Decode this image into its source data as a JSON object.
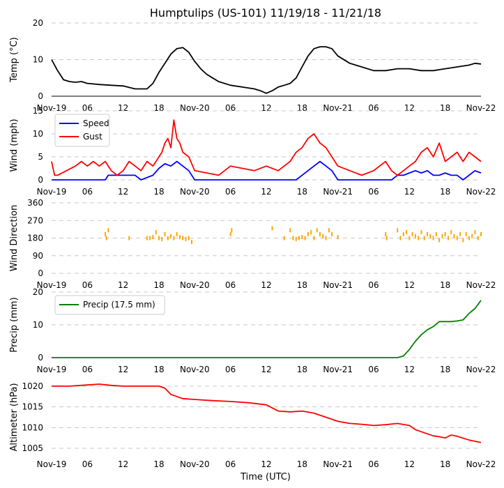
{
  "title": "Humptulips (US-101) 11/19/18 - 11/21/18",
  "xlabel": "Time (UTC)",
  "x_tick_labels": [
    "Nov-19",
    "06",
    "12",
    "18",
    "Nov-20",
    "06",
    "12",
    "18",
    "Nov-21",
    "06",
    "12",
    "18",
    "Nov-22"
  ],
  "x_range_hours": [
    0,
    72
  ],
  "chart_data": [
    {
      "type": "line",
      "id": "temp",
      "ylabel": "Temp (°C)",
      "ylim": [
        0,
        20
      ],
      "yticks": [
        0,
        10,
        20
      ],
      "grid": true,
      "legend": null,
      "series": [
        {
          "name": "Temp",
          "color": "#000000",
          "x": [
            0,
            1,
            2,
            3,
            4,
            5,
            6,
            8,
            10,
            12,
            14,
            16,
            17,
            18,
            19,
            20,
            21,
            22,
            23,
            24,
            25,
            26,
            27,
            28,
            30,
            32,
            34,
            35,
            36,
            37,
            38,
            39,
            40,
            41,
            42,
            43,
            44,
            45,
            46,
            47,
            48,
            50,
            52,
            54,
            56,
            58,
            60,
            62,
            64,
            66,
            68,
            70,
            71,
            72
          ],
          "y": [
            10,
            7,
            4.5,
            4,
            3.8,
            4,
            3.5,
            3.2,
            3,
            2.8,
            2,
            2,
            3.5,
            6.5,
            9,
            11.5,
            13,
            13.3,
            12,
            9.5,
            7.5,
            6,
            5,
            4,
            3,
            2.5,
            2,
            1.5,
            0.8,
            1.5,
            2.5,
            3,
            3.5,
            5,
            8,
            11,
            13,
            13.5,
            13.5,
            13,
            11,
            9,
            8,
            7,
            7,
            7.5,
            7.5,
            7,
            7,
            7.5,
            8,
            8.5,
            9,
            8.8
          ]
        }
      ]
    },
    {
      "type": "line",
      "id": "wind",
      "ylabel": "Wind (mph)",
      "ylim": [
        0,
        15
      ],
      "yticks": [
        0,
        5,
        10,
        15
      ],
      "grid": true,
      "legend": "top-left",
      "series": [
        {
          "name": "Speed",
          "color": "#0000ff",
          "x": [
            0,
            9,
            9.5,
            14,
            15,
            17,
            18,
            19,
            20,
            21,
            22,
            23,
            24,
            41,
            42,
            43,
            44,
            45,
            46,
            47,
            48,
            57,
            58,
            59,
            60,
            61,
            62,
            63,
            64,
            65,
            66,
            67,
            68,
            69,
            70,
            71,
            72
          ],
          "y": [
            0,
            0,
            1,
            1,
            0,
            1,
            2.5,
            3.5,
            3,
            4,
            3,
            2,
            0,
            0,
            1,
            2,
            3,
            4,
            3,
            2,
            0,
            0,
            1,
            1,
            1.5,
            2,
            1.5,
            2,
            1,
            1,
            1.5,
            1,
            1,
            0,
            1,
            2,
            1.5
          ]
        },
        {
          "name": "Gust",
          "color": "#ff0000",
          "x": [
            0,
            0.5,
            1,
            4,
            5,
            6,
            7,
            8,
            9,
            10,
            11,
            12,
            13,
            14,
            15,
            16,
            17,
            18,
            18.5,
            19,
            19.5,
            20,
            20.5,
            21,
            21.5,
            22,
            23,
            24,
            28,
            30,
            34,
            36,
            38,
            40,
            41,
            42,
            43,
            44,
            45,
            46,
            47,
            48,
            52,
            54,
            55,
            56,
            57,
            58,
            59,
            60,
            61,
            62,
            63,
            64,
            65,
            66,
            67,
            68,
            69,
            70,
            71,
            72
          ],
          "y": [
            4,
            1,
            1,
            3,
            4,
            3,
            4,
            3,
            4,
            2,
            1,
            2,
            4,
            3,
            2,
            4,
            3,
            5,
            6,
            8,
            9,
            7,
            13,
            9,
            8,
            6,
            5,
            2,
            1,
            3,
            2,
            3,
            2,
            4,
            6,
            7,
            9,
            10,
            8,
            7,
            5,
            3,
            1,
            2,
            3,
            4,
            2,
            1,
            2,
            3,
            4,
            6,
            7,
            5,
            8,
            4,
            5,
            6,
            4,
            6,
            5,
            4
          ]
        }
      ]
    },
    {
      "type": "scatter",
      "id": "direction",
      "ylabel": "Wind Direction",
      "ylim": [
        0,
        360
      ],
      "yticks": [
        0,
        90,
        180,
        270,
        360
      ],
      "grid": true,
      "legend": null,
      "series": [
        {
          "name": "Direction",
          "color": "#ffa500",
          "x": [
            9,
            9.2,
            9.5,
            13,
            16,
            16.5,
            17,
            17.5,
            18,
            18.5,
            19,
            19.5,
            20,
            20.5,
            21,
            21.5,
            22,
            22.5,
            23,
            23.5,
            30,
            30.2,
            37,
            39,
            40,
            40.5,
            41,
            41.5,
            42,
            42.5,
            43,
            43.5,
            44,
            44.5,
            45,
            45.5,
            46,
            46.5,
            47,
            48,
            56,
            56.2,
            58,
            58.5,
            59,
            59.5,
            60,
            60.5,
            61,
            61.5,
            62,
            62.5,
            63,
            63.5,
            64,
            64.5,
            65,
            65.5,
            66,
            66.5,
            67,
            67.5,
            68,
            68.5,
            69,
            69.5,
            70,
            70.5,
            71,
            71.5,
            72
          ],
          "y": [
            200,
            180,
            220,
            180,
            180,
            180,
            185,
            210,
            180,
            175,
            200,
            180,
            190,
            180,
            200,
            185,
            180,
            175,
            180,
            160,
            200,
            220,
            230,
            180,
            220,
            180,
            175,
            180,
            185,
            180,
            200,
            210,
            180,
            220,
            200,
            190,
            180,
            220,
            200,
            185,
            200,
            180,
            220,
            180,
            200,
            210,
            180,
            200,
            190,
            180,
            210,
            180,
            200,
            190,
            180,
            200,
            170,
            190,
            200,
            180,
            210,
            190,
            180,
            200,
            170,
            200,
            180,
            190,
            210,
            180,
            200
          ]
        }
      ]
    },
    {
      "type": "line",
      "id": "precip",
      "ylabel": "Precip (mm)",
      "ylim": [
        0,
        20
      ],
      "yticks": [
        0,
        10,
        20
      ],
      "grid": true,
      "legend": "top-left",
      "series": [
        {
          "name": "Precip (17.5 mm)",
          "color": "#008000",
          "x": [
            0,
            12,
            24,
            36,
            48,
            58,
            59,
            60,
            61,
            62,
            63,
            64,
            65,
            66,
            67,
            68,
            69,
            70,
            71,
            72
          ],
          "y": [
            0,
            0,
            0,
            0,
            0,
            0,
            0.5,
            2.5,
            5,
            7,
            8.5,
            9.5,
            11,
            11,
            11,
            11.2,
            11.5,
            13.5,
            15,
            17.5
          ]
        }
      ]
    },
    {
      "type": "line",
      "id": "altimeter",
      "ylabel": "Altimeter (hPa)",
      "ylim": [
        1004,
        1021
      ],
      "yticks": [
        1005,
        1010,
        1015,
        1020
      ],
      "grid": true,
      "legend": null,
      "series": [
        {
          "name": "Altimeter",
          "color": "#ff0000",
          "x": [
            0,
            3,
            6,
            8,
            10,
            12,
            15,
            18,
            19,
            20,
            21,
            22,
            24,
            27,
            30,
            33,
            36,
            38,
            40,
            42,
            44,
            46,
            48,
            50,
            52,
            54,
            56,
            58,
            60,
            61,
            62,
            63,
            64,
            65,
            66,
            67,
            68,
            70,
            72
          ],
          "y": [
            1020,
            1020,
            1020.3,
            1020.5,
            1020.2,
            1020,
            1020,
            1020,
            1019.5,
            1018,
            1017.5,
            1017,
            1016.8,
            1016.5,
            1016.3,
            1016,
            1015.5,
            1014,
            1013.8,
            1014,
            1013.5,
            1012.5,
            1011.5,
            1011,
            1010.8,
            1010.5,
            1010.7,
            1011,
            1010.5,
            1009.5,
            1009,
            1008.5,
            1008,
            1007.8,
            1007.5,
            1008.2,
            1007.9,
            1007,
            1006.4
          ]
        }
      ]
    }
  ]
}
